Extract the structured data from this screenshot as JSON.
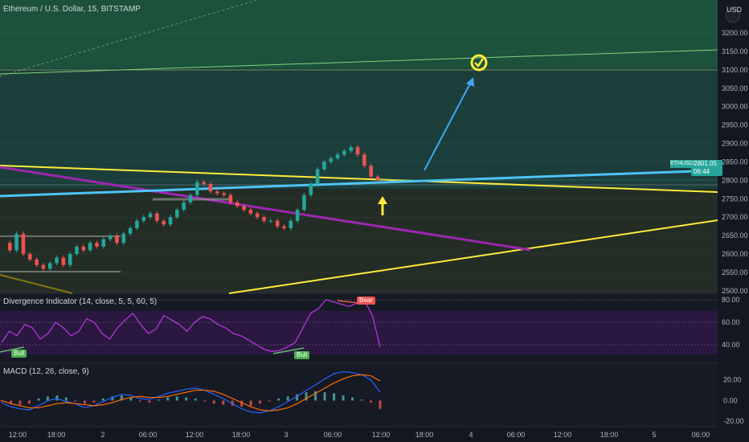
{
  "header": {
    "symbol_title": "Ethereum / U.S. Dollar, 15, BITSTAMP",
    "currency": "USD"
  },
  "price_badge": {
    "symbol": "ETHUSD",
    "price": "2801.05",
    "countdown": "06:44"
  },
  "indicators": {
    "divergence_title": "Divergence Indicator (14, close, 5, 5, 60, 5)",
    "macd_title": "MACD (12, 26, close, 9)",
    "bull_label": "Bull",
    "bear_label": "Bear"
  },
  "colors": {
    "background": "#131722",
    "candle_up": "#26a69a",
    "candle_down": "#ef5350",
    "target_zone": "#1b5e4a",
    "yellow_trend": "#ffeb3b",
    "blue_trend": "#2196f3",
    "purple_trend": "#9c27b0",
    "rsi_line": "#b038d6",
    "macd_line": "#2962ff",
    "signal_line": "#ff6d00"
  },
  "chart_data": {
    "type": "line",
    "title": "Ethereum / U.S. Dollar, 15, BITSTAMP",
    "xlabel": "",
    "ylabel": "",
    "ylim": [
      2480,
      3270
    ],
    "y_ticks": [
      "3200.00",
      "3150.00",
      "3100.00",
      "3050.00",
      "3000.00",
      "2950.00",
      "2900.00",
      "2850.00",
      "2800.00",
      "2750.00",
      "2700.00",
      "2650.00",
      "2600.00",
      "2550.00",
      "2500.00"
    ],
    "x_ticks": [
      "12:00",
      "18:00",
      "2",
      "06:00",
      "12:00",
      "18:00",
      "3",
      "06:00",
      "12:00",
      "18:00",
      "4",
      "06:00",
      "12:00",
      "18:00",
      "5",
      "06:00"
    ],
    "series": [
      {
        "values": [
          2630,
          2610,
          2655,
          2600,
          2585,
          2570,
          2560,
          2575,
          2590,
          2570,
          2600,
          2620,
          2610,
          2630,
          2620,
          2640,
          2650,
          2630,
          2655,
          2670,
          2690,
          2700,
          2710,
          2690,
          2680,
          2700,
          2720,
          2740,
          2760,
          2795,
          2790,
          2770,
          2765,
          2760,
          2740,
          2730,
          2720,
          2710,
          2700,
          2690,
          2690,
          2675,
          2670,
          2690,
          2720,
          2760,
          2790,
          2830,
          2850,
          2860,
          2870,
          2880,
          2890,
          2870,
          2840,
          2810,
          2801
        ]
      }
    ],
    "rsi": {
      "ylim": [
        25,
        85
      ],
      "y_ticks": [
        "80.00",
        "60.00",
        "40.00"
      ],
      "values": [
        42,
        52,
        48,
        58,
        55,
        45,
        50,
        60,
        55,
        48,
        52,
        63,
        60,
        50,
        45,
        55,
        62,
        68,
        58,
        50,
        54,
        66,
        62,
        58,
        52,
        60,
        65,
        63,
        58,
        55,
        50,
        48,
        44,
        40,
        36,
        34,
        35,
        38,
        42,
        55,
        68,
        72,
        80,
        78,
        76,
        74,
        77,
        79,
        66,
        38
      ]
    },
    "macd": {
      "ylim": [
        -23,
        33
      ],
      "y_ticks": [
        "20.00",
        "0.00",
        "-20.00"
      ],
      "macd_values": [
        -2,
        -6,
        -8,
        -9,
        -5,
        0,
        2,
        -1,
        -3,
        -7,
        -5,
        -1,
        3,
        6,
        5,
        2,
        1,
        4,
        7,
        9,
        11,
        12,
        10,
        6,
        2,
        -3,
        -8,
        -11,
        -12,
        -10,
        -6,
        -1,
        4,
        10,
        15,
        21,
        26,
        28,
        27,
        25,
        20,
        8
      ],
      "signal_values": [
        0,
        -3,
        -5,
        -7,
        -7,
        -5,
        -3,
        -2,
        -3,
        -4,
        -5,
        -4,
        -2,
        1,
        3,
        4,
        3,
        3,
        4,
        6,
        8,
        10,
        10,
        9,
        6,
        2,
        -2,
        -6,
        -9,
        -10,
        -9,
        -7,
        -3,
        2,
        7,
        12,
        17,
        21,
        24,
        25,
        24,
        19
      ],
      "histogram": [
        -1,
        -3,
        -4,
        -3,
        2,
        4,
        5,
        3,
        -1,
        -3,
        -2,
        2,
        4,
        5,
        3,
        -1,
        -2,
        1,
        3,
        4,
        3,
        2,
        -1,
        -3,
        -4,
        -5,
        -6,
        -5,
        -3,
        -1,
        2,
        4,
        6,
        8,
        9,
        8,
        7,
        5,
        3,
        1,
        -2,
        -8
      ]
    }
  }
}
